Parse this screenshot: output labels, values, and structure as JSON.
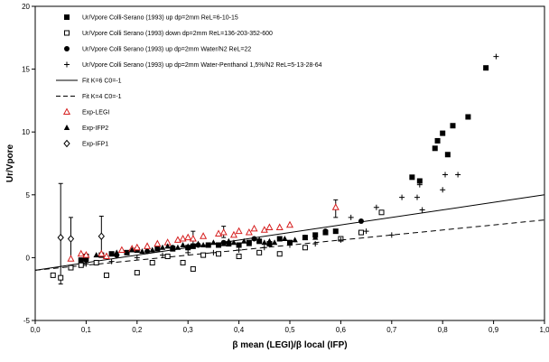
{
  "chart_data": {
    "type": "scatter",
    "xlabel": "β mean (LEGI)/β local (IFP)",
    "ylabel": "Ur/Vpore",
    "xlim": [
      0.0,
      1.0
    ],
    "ylim": [
      -5,
      20
    ],
    "xticks": [
      "0,0",
      "0,1",
      "0,2",
      "0,3",
      "0,4",
      "0,5",
      "0,6",
      "0,7",
      "0,8",
      "0,9",
      "1,0"
    ],
    "yticks": [
      "-5",
      "0",
      "5",
      "10",
      "15",
      "20"
    ],
    "legend_position": "top-left",
    "series": [
      {
        "name": "Ur/Vpore Colli-Serano (1993) up dp=2mm ReL=6-10-15",
        "marker": "filled-square",
        "color": "#000000",
        "x": [
          0.09,
          0.1,
          0.13,
          0.15,
          0.18,
          0.2,
          0.24,
          0.27,
          0.3,
          0.31,
          0.34,
          0.36,
          0.38,
          0.4,
          0.42,
          0.44,
          0.46,
          0.48,
          0.5,
          0.53,
          0.55,
          0.57,
          0.59,
          0.74,
          0.755,
          0.785,
          0.79,
          0.8,
          0.81,
          0.82,
          0.85,
          0.885
        ],
        "y": [
          -0.2,
          0.1,
          0.2,
          0.3,
          0.4,
          0.6,
          0.7,
          0.7,
          0.8,
          0.9,
          1.0,
          1.0,
          1.1,
          1.0,
          1.2,
          1.3,
          1.1,
          1.5,
          1.2,
          1.6,
          1.8,
          2.0,
          2.1,
          6.4,
          6.1,
          8.7,
          9.3,
          9.9,
          8.2,
          10.5,
          11.2,
          15.1
        ]
      },
      {
        "name": "Ur/Vpore  Colli Serano (1993) down dp=2mm ReL=136-203-352-600",
        "marker": "open-square",
        "color": "#000000",
        "x": [
          0.035,
          0.05,
          0.07,
          0.09,
          0.12,
          0.14,
          0.2,
          0.23,
          0.26,
          0.29,
          0.31,
          0.33,
          0.36,
          0.4,
          0.44,
          0.48,
          0.53,
          0.6,
          0.64,
          0.68
        ],
        "y": [
          -1.4,
          -1.6,
          -0.8,
          -0.6,
          -0.4,
          -1.4,
          -1.2,
          -0.4,
          0.1,
          -0.4,
          -0.9,
          0.2,
          0.3,
          0.1,
          0.4,
          0.3,
          0.8,
          1.5,
          2.0,
          3.6
        ]
      },
      {
        "name": "Ur/Vpore Colli Serano (1993)  up dp=2mm Water/N2 ReL=22",
        "marker": "filled-circle",
        "color": "#000000",
        "x": [
          0.1,
          0.16,
          0.22,
          0.27,
          0.32,
          0.37,
          0.43,
          0.5,
          0.57,
          0.64
        ],
        "y": [
          -0.2,
          0.2,
          0.5,
          0.8,
          1.0,
          1.2,
          1.5,
          1.2,
          2.1,
          2.9
        ]
      },
      {
        "name": "Ur/Vpore Colli Serano (1993) up dp=2mm Water-Penthanol 1,5%/N2 ReL=5-13-28-64",
        "marker": "plus",
        "color": "#000000",
        "x": [
          0.1,
          0.15,
          0.2,
          0.25,
          0.3,
          0.35,
          0.4,
          0.45,
          0.5,
          0.55,
          0.6,
          0.62,
          0.65,
          0.67,
          0.7,
          0.72,
          0.75,
          0.755,
          0.76,
          0.8,
          0.805,
          0.83,
          0.905
        ],
        "y": [
          -0.5,
          -0.3,
          0,
          0.2,
          0.4,
          0.4,
          0.6,
          0.8,
          1.0,
          1.1,
          1.4,
          3.2,
          2.1,
          4.0,
          1.8,
          4.8,
          4.8,
          5.8,
          3.8,
          5.4,
          6.6,
          6.6,
          16.0
        ]
      },
      {
        "name": "Exp-LEGI",
        "marker": "open-triangle",
        "color": "#d62020",
        "x": [
          0.07,
          0.09,
          0.1,
          0.13,
          0.14,
          0.17,
          0.19,
          0.2,
          0.22,
          0.24,
          0.26,
          0.28,
          0.29,
          0.3,
          0.31,
          0.33,
          0.36,
          0.37,
          0.39,
          0.4,
          0.42,
          0.43,
          0.45,
          0.46,
          0.48,
          0.5,
          0.59
        ],
        "y": [
          -0.1,
          0.3,
          0.2,
          0.3,
          0.1,
          0.6,
          0.7,
          0.8,
          0.9,
          1.1,
          1.2,
          1.4,
          1.5,
          1.6,
          1.5,
          1.7,
          1.9,
          2.0,
          1.8,
          2.1,
          2.0,
          2.3,
          2.2,
          2.4,
          2.4,
          2.6,
          4.0
        ]
      },
      {
        "name": "Exp-IFP2",
        "marker": "filled-triangle",
        "color": "#000000",
        "x": [
          0.12,
          0.16,
          0.19,
          0.21,
          0.23,
          0.25,
          0.26,
          0.28,
          0.29,
          0.3,
          0.32,
          0.33,
          0.35,
          0.37,
          0.38,
          0.39,
          0.41,
          0.42,
          0.44,
          0.45,
          0.46,
          0.47,
          0.49,
          0.51,
          0.53,
          0.55
        ],
        "y": [
          0.2,
          0.4,
          0.6,
          0.5,
          0.6,
          0.8,
          0.9,
          0.8,
          1.0,
          0.9,
          1.1,
          1.0,
          1.2,
          1.1,
          1.3,
          1.2,
          1.3,
          1.1,
          1.4,
          1.2,
          1.3,
          1.2,
          1.5,
          1.4,
          1.6,
          1.6
        ]
      },
      {
        "name": "Exp-IFP1",
        "marker": "open-diamond",
        "color": "#000000",
        "x": [
          0.05,
          0.07,
          0.13
        ],
        "y": [
          1.6,
          1.5,
          1.7
        ]
      }
    ],
    "error_bars": [
      {
        "x": 0.05,
        "low": -2.1,
        "high": 5.9
      },
      {
        "x": 0.07,
        "low": -0.2,
        "high": 3.2
      },
      {
        "x": 0.13,
        "low": 0.1,
        "high": 3.3
      },
      {
        "x": 0.59,
        "low": 3.2,
        "high": 4.6
      },
      {
        "x": 0.37,
        "low": 1.6,
        "high": 2.5
      },
      {
        "x": 0.31,
        "low": 1.1,
        "high": 2.1
      }
    ],
    "fit_lines": [
      {
        "name": "Fit K=6 C0=-1",
        "style": "solid",
        "slope": 6,
        "intercept": -1
      },
      {
        "name": "Fit K=4 C0=-1",
        "style": "dashed",
        "slope": 4,
        "intercept": -1
      }
    ]
  }
}
